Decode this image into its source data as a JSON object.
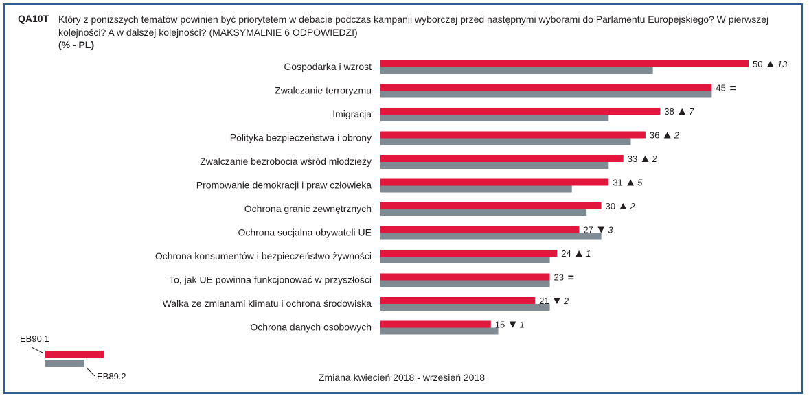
{
  "question": {
    "code": "QA10T",
    "text": "Który z poniższych tematów powinien być priorytetem w debacie podczas kampanii wyborczej przed następnymi wyborami do Parlamentu Europejskiego? W pierwszej kolejności? A w dalszej kolejności? (MAKSYMALNIE 6 ODPOWIEDZI)",
    "unit": "(% - PL)"
  },
  "footer": "Zmiana kwiecień 2018 - wrzesień 2018",
  "colors": {
    "current": "#e2173d",
    "previous": "#7f8a93",
    "border": "#2f5f8f"
  },
  "chart_data": {
    "type": "bar",
    "orientation": "horizontal",
    "categories": [
      "Gospodarka i wzrost",
      "Zwalczanie terroryzmu",
      "Imigracja",
      "Polityka bezpieczeństwa i obrony",
      "Zwalczanie bezrobocia wśród młodzieży",
      "Promowanie demokracji i praw człowieka",
      "Ochrona granic zewnętrznych",
      "Ochrona socjalna obywateli UE",
      "Ochrona konsumentów i bezpieczeństwo żywności",
      "To, jak UE powinna funkcjonować w przyszłości",
      "Walka ze zmianami klimatu i ochrona środowiska",
      "Ochrona danych osobowych"
    ],
    "series": [
      {
        "name": "EB90.1",
        "values": [
          50,
          45,
          38,
          36,
          33,
          31,
          30,
          27,
          24,
          23,
          21,
          15
        ]
      },
      {
        "name": "EB89.2",
        "values": [
          37,
          45,
          31,
          34,
          31,
          26,
          28,
          30,
          23,
          23,
          23,
          16
        ]
      }
    ],
    "changes": [
      {
        "dir": "up",
        "value": "13"
      },
      {
        "dir": "eq",
        "value": ""
      },
      {
        "dir": "up",
        "value": "7"
      },
      {
        "dir": "up",
        "value": "2"
      },
      {
        "dir": "up",
        "value": "2"
      },
      {
        "dir": "up",
        "value": "5"
      },
      {
        "dir": "up",
        "value": "2"
      },
      {
        "dir": "down",
        "value": "3"
      },
      {
        "dir": "up",
        "value": "1"
      },
      {
        "dir": "eq",
        "value": ""
      },
      {
        "dir": "down",
        "value": "2"
      },
      {
        "dir": "down",
        "value": "1"
      }
    ],
    "legend": [
      "EB90.1",
      "EB89.2"
    ],
    "xlim": [
      0,
      50
    ]
  }
}
